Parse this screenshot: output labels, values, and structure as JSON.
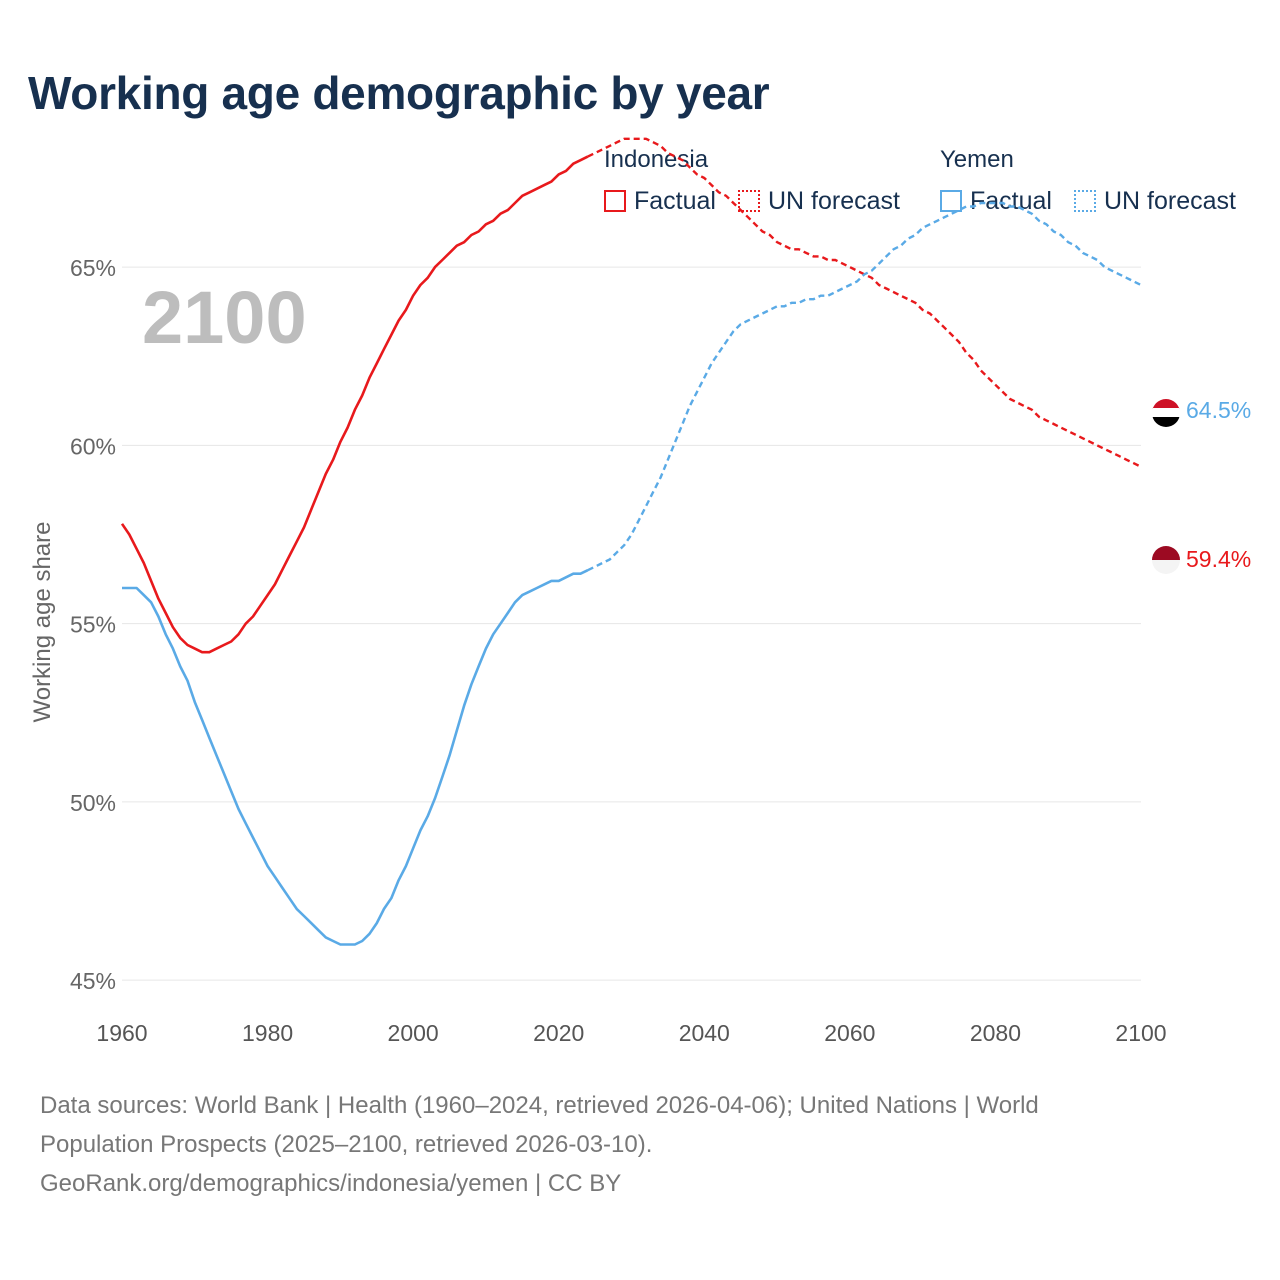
{
  "title": "Working age demographic by year",
  "year_overlay": "2100",
  "legend": {
    "groups": [
      {
        "name": "Indonesia",
        "factual": "Factual",
        "forecast": "UN forecast",
        "color": "#e8191c"
      },
      {
        "name": "Yemen",
        "factual": "Factual",
        "forecast": "UN forecast",
        "color": "#5aaae6"
      }
    ]
  },
  "sources": {
    "line1": "Data sources: World Bank | Health (1960–2024, retrieved 2026-04-06); United Nations | World",
    "line2": "Population Prospects (2025–2100, retrieved 2026-03-10).",
    "line3": "GeoRank.org/demographics/indonesia/yemen | CC BY"
  },
  "chart_data": {
    "type": "line",
    "title": "Working age demographic by year",
    "ylabel": "Working age share",
    "xlabel": "",
    "xlim": [
      1960,
      2100
    ],
    "ylim": [
      44.5,
      67.5
    ],
    "x_ticks": [
      1960,
      1980,
      2000,
      2020,
      2040,
      2060,
      2080,
      2100
    ],
    "x_tick_labels": [
      "1960",
      "1980",
      "2000",
      "2020",
      "2040",
      "2060",
      "2080",
      "2100"
    ],
    "y_ticks": [
      45,
      50,
      55,
      60,
      65
    ],
    "y_tick_labels": [
      "45%",
      "50%",
      "55%",
      "60%",
      "65%"
    ],
    "factual_end_year": 2024,
    "series": [
      {
        "name": "Indonesia",
        "color": "#e8191c",
        "end_label": "59.4%",
        "points": [
          [
            1960,
            57.8
          ],
          [
            1961,
            57.5
          ],
          [
            1962,
            57.1
          ],
          [
            1963,
            56.7
          ],
          [
            1964,
            56.2
          ],
          [
            1965,
            55.7
          ],
          [
            1966,
            55.3
          ],
          [
            1967,
            54.9
          ],
          [
            1968,
            54.6
          ],
          [
            1969,
            54.4
          ],
          [
            1970,
            54.3
          ],
          [
            1971,
            54.2
          ],
          [
            1972,
            54.2
          ],
          [
            1973,
            54.3
          ],
          [
            1974,
            54.4
          ],
          [
            1975,
            54.5
          ],
          [
            1976,
            54.7
          ],
          [
            1977,
            55.0
          ],
          [
            1978,
            55.2
          ],
          [
            1979,
            55.5
          ],
          [
            1980,
            55.8
          ],
          [
            1981,
            56.1
          ],
          [
            1982,
            56.5
          ],
          [
            1983,
            56.9
          ],
          [
            1984,
            57.3
          ],
          [
            1985,
            57.7
          ],
          [
            1986,
            58.2
          ],
          [
            1987,
            58.7
          ],
          [
            1988,
            59.2
          ],
          [
            1989,
            59.6
          ],
          [
            1990,
            60.1
          ],
          [
            1991,
            60.5
          ],
          [
            1992,
            61.0
          ],
          [
            1993,
            61.4
          ],
          [
            1994,
            61.9
          ],
          [
            1995,
            62.3
          ],
          [
            1996,
            62.7
          ],
          [
            1997,
            63.1
          ],
          [
            1998,
            63.5
          ],
          [
            1999,
            63.8
          ],
          [
            2000,
            64.2
          ],
          [
            2001,
            64.5
          ],
          [
            2002,
            64.7
          ],
          [
            2003,
            65.0
          ],
          [
            2004,
            65.2
          ],
          [
            2005,
            65.4
          ],
          [
            2006,
            65.6
          ],
          [
            2007,
            65.7
          ],
          [
            2008,
            65.9
          ],
          [
            2009,
            66.0
          ],
          [
            2010,
            66.2
          ],
          [
            2011,
            66.3
          ],
          [
            2012,
            66.5
          ],
          [
            2013,
            66.6
          ],
          [
            2014,
            66.8
          ],
          [
            2015,
            67.0
          ],
          [
            2016,
            67.1
          ],
          [
            2017,
            67.2
          ],
          [
            2018,
            67.3
          ],
          [
            2019,
            67.4
          ],
          [
            2020,
            67.6
          ],
          [
            2021,
            67.7
          ],
          [
            2022,
            67.9
          ],
          [
            2023,
            68.0
          ],
          [
            2024,
            68.1
          ],
          [
            2025,
            68.2
          ],
          [
            2026,
            68.3
          ],
          [
            2027,
            68.4
          ],
          [
            2028,
            68.5
          ],
          [
            2029,
            68.6
          ],
          [
            2030,
            68.6
          ],
          [
            2031,
            68.6
          ],
          [
            2032,
            68.6
          ],
          [
            2033,
            68.5
          ],
          [
            2034,
            68.4
          ],
          [
            2035,
            68.2
          ],
          [
            2036,
            68.1
          ],
          [
            2037,
            68.0
          ],
          [
            2038,
            67.8
          ],
          [
            2039,
            67.6
          ],
          [
            2040,
            67.5
          ],
          [
            2041,
            67.3
          ],
          [
            2042,
            67.1
          ],
          [
            2043,
            67.0
          ],
          [
            2044,
            66.8
          ],
          [
            2045,
            66.6
          ],
          [
            2046,
            66.4
          ],
          [
            2047,
            66.2
          ],
          [
            2048,
            66.0
          ],
          [
            2049,
            65.9
          ],
          [
            2050,
            65.7
          ],
          [
            2051,
            65.6
          ],
          [
            2052,
            65.5
          ],
          [
            2053,
            65.5
          ],
          [
            2054,
            65.4
          ],
          [
            2055,
            65.3
          ],
          [
            2056,
            65.3
          ],
          [
            2057,
            65.2
          ],
          [
            2058,
            65.2
          ],
          [
            2059,
            65.1
          ],
          [
            2060,
            65.0
          ],
          [
            2061,
            64.9
          ],
          [
            2062,
            64.8
          ],
          [
            2063,
            64.7
          ],
          [
            2064,
            64.5
          ],
          [
            2065,
            64.4
          ],
          [
            2066,
            64.3
          ],
          [
            2067,
            64.2
          ],
          [
            2068,
            64.1
          ],
          [
            2069,
            64.0
          ],
          [
            2070,
            63.8
          ],
          [
            2071,
            63.7
          ],
          [
            2072,
            63.5
          ],
          [
            2073,
            63.3
          ],
          [
            2074,
            63.1
          ],
          [
            2075,
            62.9
          ],
          [
            2076,
            62.6
          ],
          [
            2077,
            62.4
          ],
          [
            2078,
            62.1
          ],
          [
            2079,
            61.9
          ],
          [
            2080,
            61.7
          ],
          [
            2081,
            61.5
          ],
          [
            2082,
            61.3
          ],
          [
            2083,
            61.2
          ],
          [
            2084,
            61.1
          ],
          [
            2085,
            61.0
          ],
          [
            2086,
            60.8
          ],
          [
            2087,
            60.7
          ],
          [
            2088,
            60.6
          ],
          [
            2089,
            60.5
          ],
          [
            2090,
            60.4
          ],
          [
            2091,
            60.3
          ],
          [
            2092,
            60.2
          ],
          [
            2093,
            60.1
          ],
          [
            2094,
            60.0
          ],
          [
            2095,
            59.9
          ],
          [
            2096,
            59.8
          ],
          [
            2097,
            59.7
          ],
          [
            2098,
            59.6
          ],
          [
            2099,
            59.5
          ],
          [
            2100,
            59.4
          ]
        ]
      },
      {
        "name": "Yemen",
        "color": "#5aaae6",
        "end_label": "64.5%",
        "points": [
          [
            1960,
            56.0
          ],
          [
            1961,
            56.0
          ],
          [
            1962,
            56.0
          ],
          [
            1963,
            55.8
          ],
          [
            1964,
            55.6
          ],
          [
            1965,
            55.2
          ],
          [
            1966,
            54.7
          ],
          [
            1967,
            54.3
          ],
          [
            1968,
            53.8
          ],
          [
            1969,
            53.4
          ],
          [
            1970,
            52.8
          ],
          [
            1971,
            52.3
          ],
          [
            1972,
            51.8
          ],
          [
            1973,
            51.3
          ],
          [
            1974,
            50.8
          ],
          [
            1975,
            50.3
          ],
          [
            1976,
            49.8
          ],
          [
            1977,
            49.4
          ],
          [
            1978,
            49.0
          ],
          [
            1979,
            48.6
          ],
          [
            1980,
            48.2
          ],
          [
            1981,
            47.9
          ],
          [
            1982,
            47.6
          ],
          [
            1983,
            47.3
          ],
          [
            1984,
            47.0
          ],
          [
            1985,
            46.8
          ],
          [
            1986,
            46.6
          ],
          [
            1987,
            46.4
          ],
          [
            1988,
            46.2
          ],
          [
            1989,
            46.1
          ],
          [
            1990,
            46.0
          ],
          [
            1991,
            46.0
          ],
          [
            1992,
            46.0
          ],
          [
            1993,
            46.1
          ],
          [
            1994,
            46.3
          ],
          [
            1995,
            46.6
          ],
          [
            1996,
            47.0
          ],
          [
            1997,
            47.3
          ],
          [
            1998,
            47.8
          ],
          [
            1999,
            48.2
          ],
          [
            2000,
            48.7
          ],
          [
            2001,
            49.2
          ],
          [
            2002,
            49.6
          ],
          [
            2003,
            50.1
          ],
          [
            2004,
            50.7
          ],
          [
            2005,
            51.3
          ],
          [
            2006,
            52.0
          ],
          [
            2007,
            52.7
          ],
          [
            2008,
            53.3
          ],
          [
            2009,
            53.8
          ],
          [
            2010,
            54.3
          ],
          [
            2011,
            54.7
          ],
          [
            2012,
            55.0
          ],
          [
            2013,
            55.3
          ],
          [
            2014,
            55.6
          ],
          [
            2015,
            55.8
          ],
          [
            2016,
            55.9
          ],
          [
            2017,
            56.0
          ],
          [
            2018,
            56.1
          ],
          [
            2019,
            56.2
          ],
          [
            2020,
            56.2
          ],
          [
            2021,
            56.3
          ],
          [
            2022,
            56.4
          ],
          [
            2023,
            56.4
          ],
          [
            2024,
            56.5
          ],
          [
            2025,
            56.6
          ],
          [
            2026,
            56.7
          ],
          [
            2027,
            56.8
          ],
          [
            2028,
            57.0
          ],
          [
            2029,
            57.2
          ],
          [
            2030,
            57.5
          ],
          [
            2031,
            57.9
          ],
          [
            2032,
            58.3
          ],
          [
            2033,
            58.7
          ],
          [
            2034,
            59.1
          ],
          [
            2035,
            59.6
          ],
          [
            2036,
            60.1
          ],
          [
            2037,
            60.6
          ],
          [
            2038,
            61.1
          ],
          [
            2039,
            61.5
          ],
          [
            2040,
            61.9
          ],
          [
            2041,
            62.3
          ],
          [
            2042,
            62.6
          ],
          [
            2043,
            62.9
          ],
          [
            2044,
            63.2
          ],
          [
            2045,
            63.4
          ],
          [
            2046,
            63.5
          ],
          [
            2047,
            63.6
          ],
          [
            2048,
            63.7
          ],
          [
            2049,
            63.8
          ],
          [
            2050,
            63.9
          ],
          [
            2051,
            63.9
          ],
          [
            2052,
            64.0
          ],
          [
            2053,
            64.0
          ],
          [
            2054,
            64.1
          ],
          [
            2055,
            64.1
          ],
          [
            2056,
            64.2
          ],
          [
            2057,
            64.2
          ],
          [
            2058,
            64.3
          ],
          [
            2059,
            64.4
          ],
          [
            2060,
            64.5
          ],
          [
            2061,
            64.6
          ],
          [
            2062,
            64.8
          ],
          [
            2063,
            64.9
          ],
          [
            2064,
            65.1
          ],
          [
            2065,
            65.3
          ],
          [
            2066,
            65.5
          ],
          [
            2067,
            65.6
          ],
          [
            2068,
            65.8
          ],
          [
            2069,
            65.9
          ],
          [
            2070,
            66.1
          ],
          [
            2071,
            66.2
          ],
          [
            2072,
            66.3
          ],
          [
            2073,
            66.4
          ],
          [
            2074,
            66.5
          ],
          [
            2075,
            66.6
          ],
          [
            2076,
            66.7
          ],
          [
            2077,
            66.7
          ],
          [
            2078,
            66.8
          ],
          [
            2079,
            66.8
          ],
          [
            2080,
            66.8
          ],
          [
            2081,
            66.8
          ],
          [
            2082,
            66.7
          ],
          [
            2083,
            66.7
          ],
          [
            2084,
            66.6
          ],
          [
            2085,
            66.5
          ],
          [
            2086,
            66.3
          ],
          [
            2087,
            66.2
          ],
          [
            2088,
            66.0
          ],
          [
            2089,
            65.9
          ],
          [
            2090,
            65.7
          ],
          [
            2091,
            65.6
          ],
          [
            2092,
            65.4
          ],
          [
            2093,
            65.3
          ],
          [
            2094,
            65.2
          ],
          [
            2095,
            65.0
          ],
          [
            2096,
            64.9
          ],
          [
            2097,
            64.8
          ],
          [
            2098,
            64.7
          ],
          [
            2099,
            64.6
          ],
          [
            2100,
            64.5
          ]
        ]
      }
    ]
  }
}
